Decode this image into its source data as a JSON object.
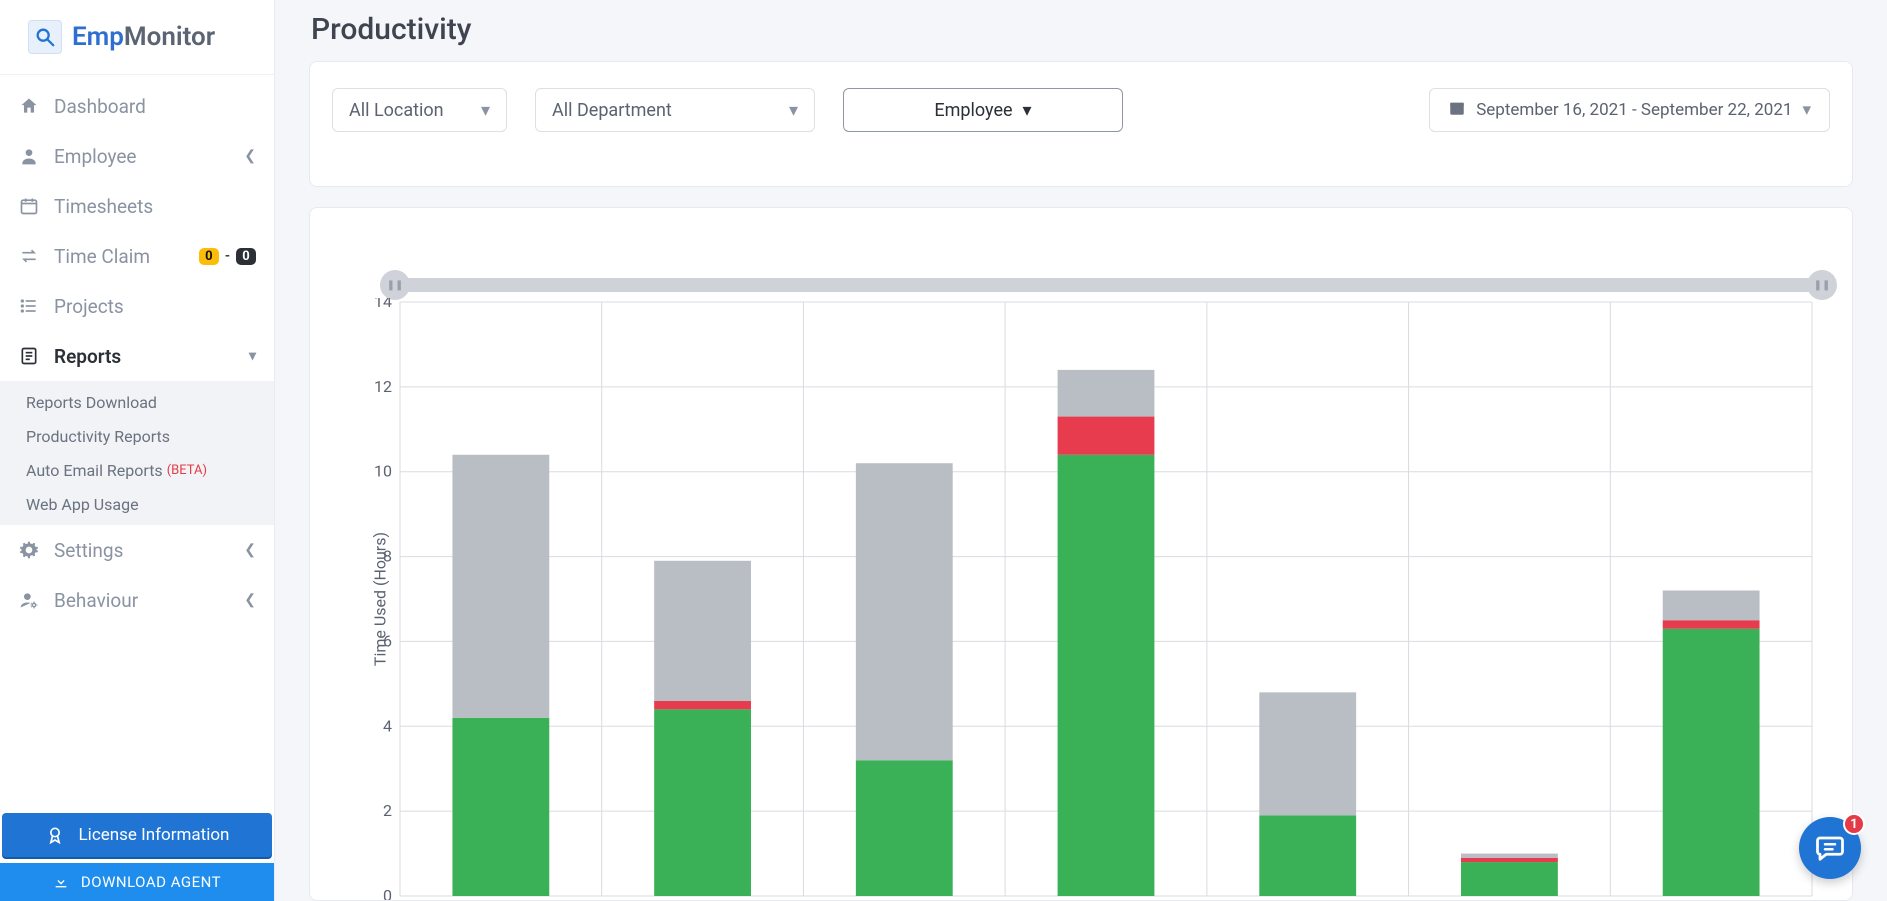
{
  "brand": {
    "name_a": "Emp",
    "name_b": "Monitor"
  },
  "sidebar": {
    "items": [
      {
        "label": "Dashboard"
      },
      {
        "label": "Employee"
      },
      {
        "label": "Timesheets"
      },
      {
        "label": "Time Claim",
        "badge_a": "0",
        "badge_b": "0"
      },
      {
        "label": "Projects"
      },
      {
        "label": "Reports"
      },
      {
        "label": "Settings"
      },
      {
        "label": "Behaviour"
      }
    ],
    "reports_sub": [
      {
        "label": "Reports Download"
      },
      {
        "label": "Productivity Reports"
      },
      {
        "label": "Auto Email Reports",
        "beta": "(BETA)"
      },
      {
        "label": "Web App Usage"
      }
    ],
    "license_btn": "License Information",
    "download_btn": "DOWNLOAD AGENT"
  },
  "page": {
    "title": "Productivity",
    "filters": {
      "location": "All Location",
      "department": "All Department",
      "role": "Employee",
      "date_range": "September 16, 2021 - September 22, 2021"
    }
  },
  "chart": {
    "type": "stacked-bar",
    "y_label": "Time Used (Hours)",
    "ylim": [
      0,
      14
    ],
    "ytick_step": 2,
    "grid_color": "#d8dbe1",
    "colors": {
      "productive": "#3bb157",
      "unproductive": "#e73c4e",
      "neutral": "#b9bdc4",
      "background": "#ffffff"
    },
    "bar_width_ratio": 0.48,
    "bars": [
      {
        "productive": 4.2,
        "unproductive": 0.0,
        "neutral": 6.2
      },
      {
        "productive": 4.4,
        "unproductive": 0.2,
        "neutral": 3.3
      },
      {
        "productive": 3.2,
        "unproductive": 0.0,
        "neutral": 7.0
      },
      {
        "productive": 10.4,
        "unproductive": 0.9,
        "neutral": 1.1
      },
      {
        "productive": 1.9,
        "unproductive": 0.0,
        "neutral": 2.9
      },
      {
        "productive": 0.8,
        "unproductive": 0.1,
        "neutral": 0.1
      },
      {
        "productive": 6.3,
        "unproductive": 0.2,
        "neutral": 0.7
      }
    ]
  },
  "chat_notif_count": "1"
}
